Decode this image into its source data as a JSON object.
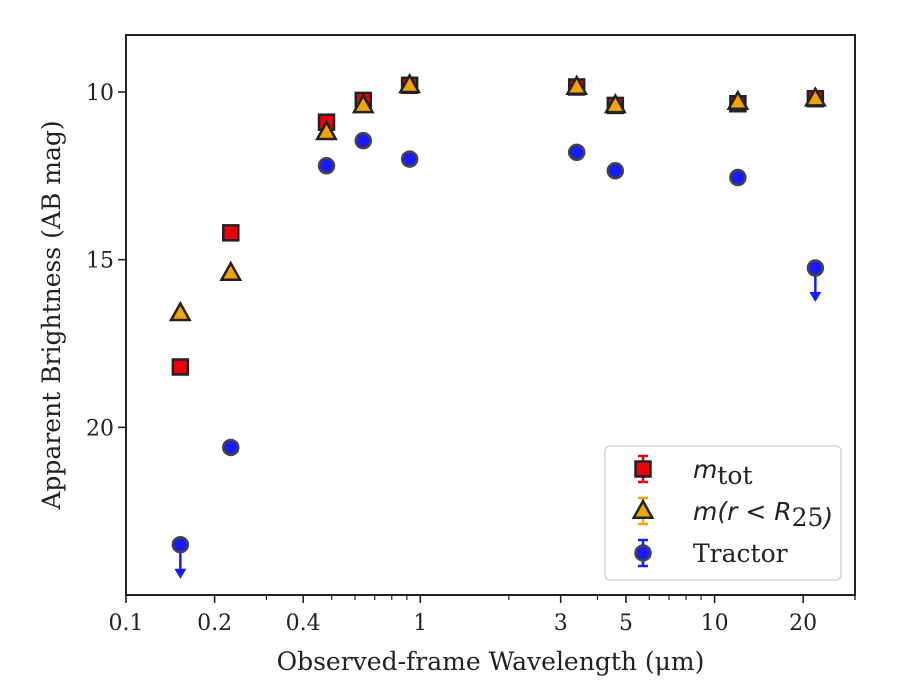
{
  "chart_data": {
    "type": "scatter",
    "xscale": "log",
    "yaxis_inverted": true,
    "xlim": [
      0.1,
      30
    ],
    "ylim": [
      25,
      8.3
    ],
    "xlabel": "Observed-frame Wavelength (μm)",
    "ylabel": "Apparent Brightness (AB mag)",
    "x_ticks": [
      {
        "value": 0.1,
        "label": "0.1"
      },
      {
        "value": 0.2,
        "label": "0.2"
      },
      {
        "value": 0.4,
        "label": "0.4"
      },
      {
        "value": 1,
        "label": "1"
      },
      {
        "value": 3,
        "label": "3"
      },
      {
        "value": 5,
        "label": "5"
      },
      {
        "value": 10,
        "label": "10"
      },
      {
        "value": 20,
        "label": "20"
      }
    ],
    "y_ticks": [
      {
        "value": 10,
        "label": "10"
      },
      {
        "value": 15,
        "label": "15"
      },
      {
        "value": 20,
        "label": "20"
      }
    ],
    "legend_position": "lower-right",
    "series": [
      {
        "name": "m_tot",
        "legend_parts": [
          {
            "text": "m",
            "style": "math"
          },
          {
            "text": "tot",
            "style": "sub"
          }
        ],
        "marker": "square",
        "color": "#e8000b",
        "edge_color": "#222222",
        "errorbar_color": "#e8000b",
        "x": [
          0.153,
          0.227,
          0.48,
          0.64,
          0.92,
          3.4,
          4.6,
          12.0,
          22.0
        ],
        "y": [
          18.2,
          14.2,
          10.9,
          10.25,
          9.8,
          9.85,
          10.4,
          10.35,
          10.2
        ]
      },
      {
        "name": "m(r < R25)",
        "legend_parts": [
          {
            "text": "m(r < R",
            "style": "math"
          },
          {
            "text": "25",
            "style": "sub"
          },
          {
            "text": ")",
            "style": "math"
          }
        ],
        "marker": "triangle",
        "color": "#f0a30a",
        "edge_color": "#222222",
        "errorbar_color": "#f0a30a",
        "x": [
          0.153,
          0.227,
          0.48,
          0.64,
          0.92,
          3.4,
          4.6,
          12.0,
          22.0
        ],
        "y": [
          16.6,
          15.4,
          11.2,
          10.4,
          9.8,
          9.85,
          10.4,
          10.3,
          10.2
        ]
      },
      {
        "name": "Tractor",
        "legend_parts": [
          {
            "text": "Tractor",
            "style": "text"
          }
        ],
        "marker": "circle",
        "color": "#1a1aff",
        "edge_color": "#444444",
        "errorbar_color": "#1a1aff",
        "x": [
          0.153,
          0.227,
          0.48,
          0.64,
          0.92,
          3.4,
          4.6,
          12.0,
          22.0
        ],
        "y": [
          23.5,
          20.6,
          12.2,
          11.45,
          12.0,
          11.8,
          12.35,
          12.55,
          15.25
        ],
        "upper_limit": [
          true,
          false,
          false,
          false,
          false,
          false,
          false,
          false,
          true
        ]
      }
    ]
  }
}
